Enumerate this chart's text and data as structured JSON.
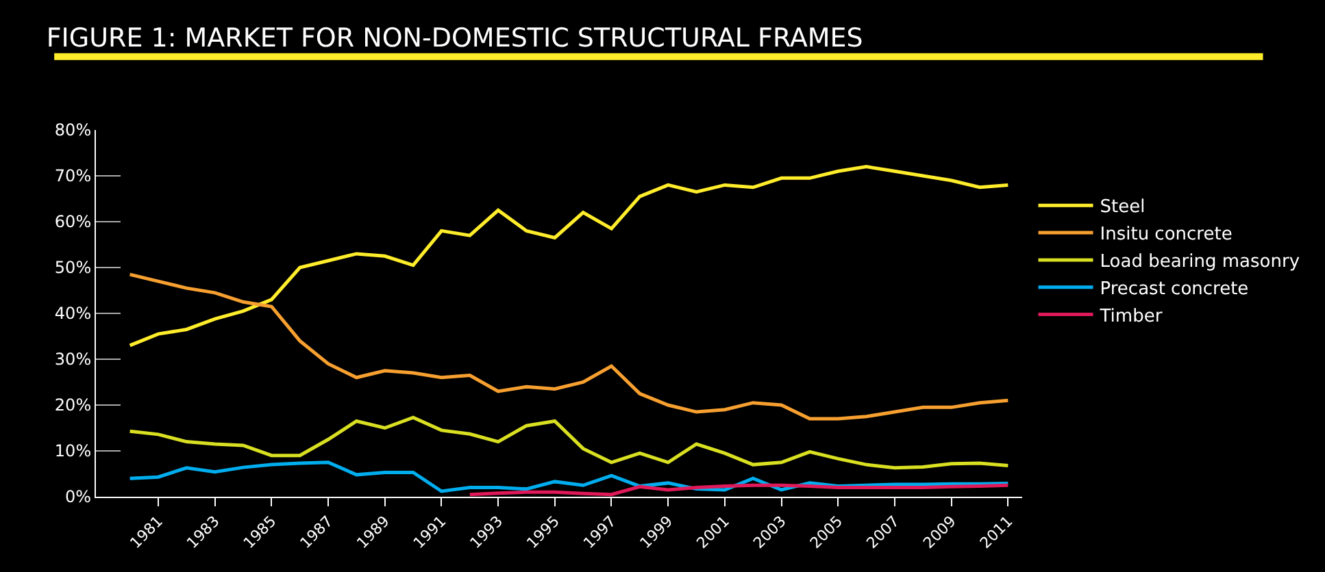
{
  "chart_data": {
    "type": "line",
    "title": "FIGURE 1: MARKET FOR NON-DOMESTIC STRUCTURAL FRAMES",
    "x": [
      1980,
      1981,
      1982,
      1983,
      1984,
      1985,
      1986,
      1987,
      1988,
      1989,
      1990,
      1991,
      1992,
      1993,
      1994,
      1995,
      1996,
      1997,
      1998,
      1999,
      2000,
      2001,
      2002,
      2003,
      2004,
      2005,
      2006,
      2007,
      2008,
      2009,
      2010,
      2011
    ],
    "series": [
      {
        "name": "Steel",
        "color": "#ffed2b",
        "values": [
          33,
          35.5,
          36.5,
          38.8,
          40.5,
          43,
          50,
          51.5,
          53,
          52.5,
          50.5,
          58,
          57,
          62.5,
          58,
          56.5,
          62,
          58.5,
          65.5,
          68,
          66.5,
          68,
          67.5,
          69.5,
          69.5,
          71,
          72,
          71,
          70,
          69,
          67.5,
          68
        ]
      },
      {
        "name": "Insitu concrete",
        "color": "#f7a030",
        "values": [
          48.5,
          47,
          45.5,
          44.5,
          42.5,
          41.5,
          34,
          29,
          26,
          27.5,
          27,
          26,
          26.5,
          23,
          24,
          23.5,
          25,
          28.5,
          22.5,
          20,
          18.5,
          19,
          20.5,
          20,
          17,
          17,
          17.5,
          18.5,
          19.5,
          19.5,
          20.5,
          21
        ]
      },
      {
        "name": "Load bearing masonry",
        "color": "#d9e021",
        "values": [
          14.3,
          13.6,
          12,
          11.5,
          11.2,
          9,
          9,
          12.5,
          16.5,
          15,
          17.3,
          14.5,
          13.7,
          12,
          15.5,
          16.5,
          10.5,
          7.5,
          9.5,
          7.5,
          11.5,
          9.5,
          7,
          7.5,
          9.8,
          8.3,
          7,
          6.3,
          6.5,
          7.2,
          7.3,
          6.8
        ]
      },
      {
        "name": "Precast concrete",
        "color": "#00aeef",
        "values": [
          4,
          4.3,
          6.3,
          5.4,
          6.4,
          7,
          7.3,
          7.5,
          4.8,
          5.3,
          5.3,
          1.2,
          2,
          2,
          1.7,
          3.3,
          2.5,
          4.6,
          2.3,
          3,
          1.7,
          1.5,
          4,
          1.5,
          3,
          2.3,
          2.5,
          2.7,
          2.7,
          2.8,
          2.8,
          2.9
        ]
      },
      {
        "name": "Timber",
        "color": "#e0195a",
        "x": [
          1992,
          1993,
          1994,
          1995,
          1996,
          1997,
          1998,
          1999,
          2000,
          2001,
          2002,
          2003,
          2004,
          2005,
          2006,
          2007,
          2008,
          2009,
          2010,
          2011
        ],
        "values": [
          0.5,
          0.8,
          1,
          1,
          0.7,
          0.5,
          2.2,
          1.5,
          2,
          2.3,
          2.5,
          2.5,
          2.3,
          2,
          2,
          2,
          2,
          2.2,
          2.3,
          2.5
        ]
      }
    ],
    "xlim": [
      1978.8,
      2011.5
    ],
    "xticks": [
      1981,
      1983,
      1985,
      1987,
      1989,
      1991,
      1993,
      1995,
      1997,
      1999,
      2001,
      2003,
      2005,
      2007,
      2009,
      2011
    ],
    "ylim": [
      0,
      80
    ],
    "yticks": [
      {
        "value": 0,
        "label": "0%"
      },
      {
        "value": 10,
        "label": "10%"
      },
      {
        "value": 20,
        "label": "20%"
      },
      {
        "value": 30,
        "label": "30%"
      },
      {
        "value": 40,
        "label": "40%"
      },
      {
        "value": 50,
        "label": "50%"
      },
      {
        "value": 60,
        "label": "60%"
      },
      {
        "value": 70,
        "label": "70%"
      },
      {
        "value": 80,
        "label": "80%"
      }
    ],
    "grid": false,
    "legend": "right",
    "marker": "none",
    "line_style": "solid"
  }
}
